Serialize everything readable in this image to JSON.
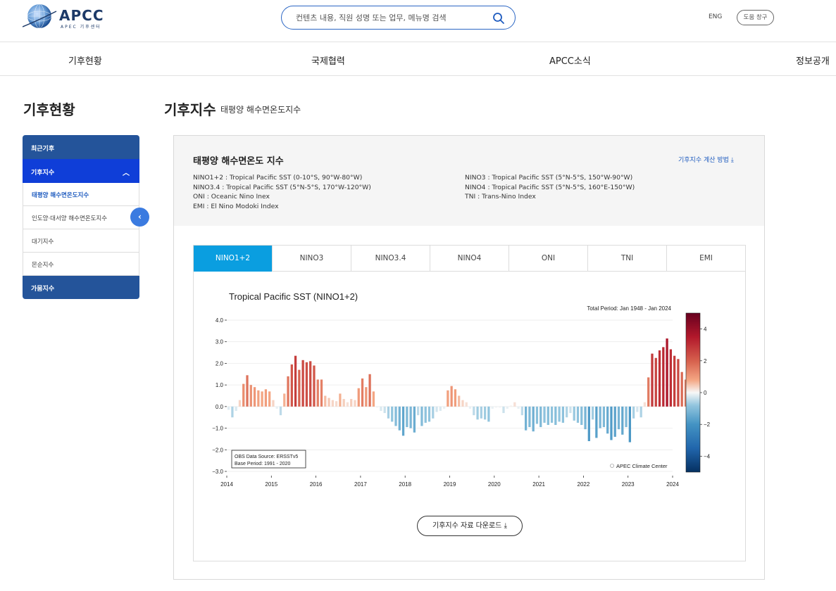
{
  "header": {
    "logo_text": "APCC",
    "logo_sub": "APEC 기후센터",
    "search_placeholder": "컨텐츠 내용, 직원 성명 또는 업무, 메뉴명 검색",
    "lang": "ENG",
    "help": "도움 창구"
  },
  "gnb": [
    "기후현황",
    "국제협력",
    "APCC소식",
    "정보공개"
  ],
  "sidebar": {
    "title": "기후현황",
    "head": "최근기후",
    "active": "기후지수",
    "items": [
      "태평양 해수면온도지수",
      "인도양·대서양 해수면온도지수",
      "대기지수",
      "몬순지수"
    ],
    "foot": "가뭄지수"
  },
  "page": {
    "title": "기후지수",
    "subtitle": "태평양 해수면온도지수"
  },
  "card": {
    "title": "태평양 해수면온도 지수",
    "method_link": "기후지수 계산 방법",
    "desc_left": [
      "NINO1+2 : Tropical Pacific SST (0-10°S, 90°W-80°W)",
      "NINO3.4 : Tropical Pacific SST (5°N-5°S, 170°W-120°W)",
      "ONI : Oceanic Nino Inex",
      "EMI : El Nino Modoki Index"
    ],
    "desc_right": [
      "NINO3 : Tropical Pacific SST (5°N-5°S, 150°W-90°W)",
      "NINO4 : Tropical Pacific SST (5°N-5°S, 160°E-150°W)",
      "TNI : Trans-Nino Index"
    ]
  },
  "tabs": [
    "NINO1+2",
    "NINO3",
    "NINO3.4",
    "NINO4",
    "ONI",
    "TNI",
    "EMI"
  ],
  "download_label": "기후지수 자료 다운로드",
  "chart_data": {
    "type": "bar",
    "title": "Tropical Pacific SST  (NINO1+2)",
    "period": "Total Period: Jan 1948 - Jan 2024",
    "source_note": [
      "OBS Data Source: ERSSTv5",
      "Base Period: 1991 - 2020"
    ],
    "credit": "APEC Climate Center",
    "xlabel": "",
    "ylabel": "",
    "ylim": [
      -3.0,
      4.0
    ],
    "yticks": [
      "4.0",
      "3.0",
      "2.0",
      "1.0",
      "0.0",
      "−1.0",
      "−2.0",
      "−3.0"
    ],
    "xticks": [
      "2014",
      "2015",
      "2016",
      "2017",
      "2018",
      "2019",
      "2020",
      "2021",
      "2022",
      "2023",
      "2024"
    ],
    "colorbar": {
      "range": [
        -5,
        5
      ],
      "ticks": [
        "4",
        "2",
        "0",
        "−2",
        "−4"
      ]
    },
    "x_start": "2014-01",
    "frequency": "monthly",
    "values": [
      -0.15,
      -0.5,
      -0.2,
      0.3,
      1.05,
      1.45,
      1.0,
      0.9,
      0.75,
      0.7,
      0.8,
      0.7,
      0.3,
      -0.1,
      -0.4,
      0.6,
      1.4,
      1.95,
      2.35,
      1.7,
      2.15,
      2.05,
      2.1,
      1.9,
      1.25,
      1.25,
      0.5,
      0.4,
      0.3,
      0.25,
      0.6,
      0.35,
      0.2,
      0.35,
      0.3,
      0.85,
      1.3,
      0.9,
      1.5,
      0.7,
      -0.05,
      -0.2,
      -0.3,
      -0.55,
      -0.7,
      -0.9,
      -1.1,
      -1.35,
      -0.95,
      -1.0,
      -1.2,
      -0.4,
      -0.9,
      -0.75,
      -0.7,
      -0.55,
      -0.25,
      -0.2,
      -0.1,
      0.75,
      0.95,
      0.8,
      0.5,
      0.3,
      0.2,
      -0.1,
      -0.4,
      -0.6,
      -0.55,
      -0.6,
      -0.7,
      -0.1,
      -0.05,
      -0.05,
      -0.3,
      -0.1,
      0.05,
      0.2,
      -0.1,
      -0.4,
      -1.1,
      -0.95,
      -1.15,
      -0.8,
      -0.95,
      -0.75,
      -0.85,
      -0.75,
      -0.85,
      -0.7,
      -0.75,
      -0.5,
      -0.3,
      -0.65,
      -0.75,
      -0.85,
      -1.05,
      -1.6,
      -0.6,
      -1.45,
      -1.0,
      -0.95,
      -1.25,
      -1.55,
      -1.4,
      -1.05,
      -1.3,
      -0.95,
      -1.65,
      -0.55,
      -0.25,
      -0.5,
      0.2,
      1.35,
      2.45,
      2.25,
      2.6,
      2.75,
      3.15,
      2.65,
      2.35,
      2.2,
      1.6,
      1.25
    ]
  }
}
